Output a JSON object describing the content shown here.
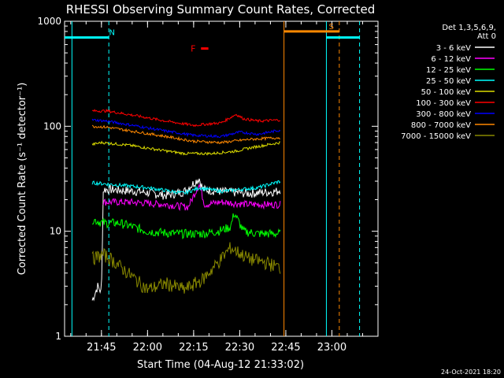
{
  "chart_data": {
    "type": "line",
    "title": "RHESSI Observing Summary Count Rates, Corrected",
    "xlabel": "Start Time (04-Aug-12 21:33:02)",
    "ylabel": "Corrected Count Rate (s⁻¹ detector⁻¹)",
    "timestamp": "24-Oct-2021 18:20",
    "y_scale": "log",
    "ylim": [
      1,
      1000
    ],
    "xlim": [
      21.55,
      23.25
    ],
    "x_ticks": [
      {
        "t": 21.75,
        "label": "21:45"
      },
      {
        "t": 22.0,
        "label": "22:00"
      },
      {
        "t": 22.25,
        "label": "22:15"
      },
      {
        "t": 22.5,
        "label": "22:30"
      },
      {
        "t": 22.75,
        "label": "22:45"
      },
      {
        "t": 23.0,
        "label": "23:00"
      }
    ],
    "y_ticks": [
      {
        "v": 1,
        "label": "1"
      },
      {
        "v": 10,
        "label": "10"
      },
      {
        "v": 100,
        "label": "100"
      },
      {
        "v": 1000,
        "label": "1000"
      }
    ],
    "legend": {
      "header": [
        "Det 1,3,5,6,9,",
        "Att 0"
      ],
      "placement": "right"
    },
    "series": [
      {
        "name": "3 - 6 keV",
        "color": "#ffffff",
        "noise": 0.1,
        "t": [
          21.7,
          21.73,
          21.75,
          21.76,
          21.8,
          21.95,
          22.1,
          22.2,
          22.28,
          22.3,
          22.4,
          22.55,
          22.7,
          22.72
        ],
        "v": [
          2.2,
          3.0,
          2.6,
          25,
          25,
          24,
          22,
          24,
          32,
          25,
          24,
          23,
          24,
          25
        ]
      },
      {
        "name": "6 - 12 keV",
        "color": "#ff00ff",
        "noise": 0.08,
        "t": [
          21.76,
          21.9,
          22.1,
          22.22,
          22.28,
          22.31,
          22.4,
          22.55,
          22.72
        ],
        "v": [
          19,
          19,
          18,
          17,
          28,
          18,
          19,
          18,
          18
        ]
      },
      {
        "name": "12 - 25 keV",
        "color": "#00ff00",
        "noise": 0.1,
        "t": [
          21.7,
          21.76,
          21.85,
          22.0,
          22.15,
          22.3,
          22.38,
          22.45,
          22.47,
          22.52,
          22.6,
          22.72
        ],
        "v": [
          13,
          12,
          12,
          10,
          9.5,
          9.5,
          10,
          11,
          15,
          10,
          9.5,
          9.5
        ]
      },
      {
        "name": "25 - 50 keV",
        "color": "#00ffff",
        "noise": 0.04,
        "t": [
          21.7,
          21.8,
          22.0,
          22.2,
          22.28,
          22.4,
          22.5,
          22.6,
          22.72
        ],
        "v": [
          29,
          28,
          26,
          23,
          26,
          24,
          25,
          26,
          30
        ]
      },
      {
        "name": "50 - 100 keV",
        "color": "#dddd00",
        "noise": 0.03,
        "t": [
          21.7,
          21.75,
          21.9,
          22.05,
          22.2,
          22.35,
          22.48,
          22.55,
          22.72
        ],
        "v": [
          67,
          70,
          66,
          60,
          55,
          55,
          58,
          62,
          70
        ]
      },
      {
        "name": "100 - 300 keV",
        "color": "#ff0000",
        "noise": 0.03,
        "t": [
          21.7,
          21.78,
          21.95,
          22.1,
          22.25,
          22.4,
          22.48,
          22.52,
          22.6,
          22.72
        ],
        "v": [
          140,
          140,
          125,
          112,
          102,
          108,
          130,
          118,
          112,
          115
        ]
      },
      {
        "name": "300 - 800 keV",
        "color": "#0000ff",
        "noise": 0.03,
        "t": [
          21.7,
          21.78,
          21.95,
          22.1,
          22.25,
          22.4,
          22.5,
          22.6,
          22.72
        ],
        "v": [
          115,
          112,
          100,
          90,
          82,
          80,
          88,
          84,
          92
        ]
      },
      {
        "name": "800 - 7000 keV",
        "color": "#ff8800",
        "noise": 0.03,
        "t": [
          21.7,
          21.78,
          21.95,
          22.1,
          22.25,
          22.4,
          22.55,
          22.72
        ],
        "v": [
          100,
          98,
          88,
          80,
          72,
          70,
          75,
          78
        ]
      },
      {
        "name": "7000 - 15000 keV",
        "color": "#888800",
        "noise": 0.15,
        "t": [
          21.7,
          21.76,
          21.8,
          22.0,
          22.1,
          22.2,
          22.3,
          22.38,
          22.45,
          22.55,
          22.65,
          22.72
        ],
        "v": [
          5.5,
          6.0,
          5.5,
          2.8,
          3.2,
          2.8,
          3.5,
          5.0,
          7.0,
          5.5,
          5.0,
          4.5
        ]
      }
    ],
    "orbit_intervals": [
      {
        "color": "#00ffff",
        "t0": 21.55,
        "t1": 21.79,
        "level": 700,
        "label": "N"
      },
      {
        "color": "#00ffff",
        "t0": 22.97,
        "t1": 23.15,
        "level": 700,
        "label": ""
      },
      {
        "color": "#ff8800",
        "t0": 22.74,
        "t1": 23.04,
        "level": 800,
        "label": "S"
      }
    ],
    "flare_marker": {
      "label": "F",
      "color": "#ff0000",
      "t0": 22.29,
      "t1": 22.33,
      "level": 550
    },
    "vertical_markers": [
      {
        "t": 21.59,
        "color": "#00ffff",
        "style": "solid"
      },
      {
        "t": 21.79,
        "color": "#00ffff",
        "style": "dashed"
      },
      {
        "t": 22.97,
        "color": "#00ffff",
        "style": "solid"
      },
      {
        "t": 23.15,
        "color": "#00ffff",
        "style": "dashed"
      },
      {
        "t": 22.74,
        "color": "#ff8800",
        "style": "solid"
      },
      {
        "t": 23.04,
        "color": "#ff8800",
        "style": "dashed"
      }
    ]
  }
}
